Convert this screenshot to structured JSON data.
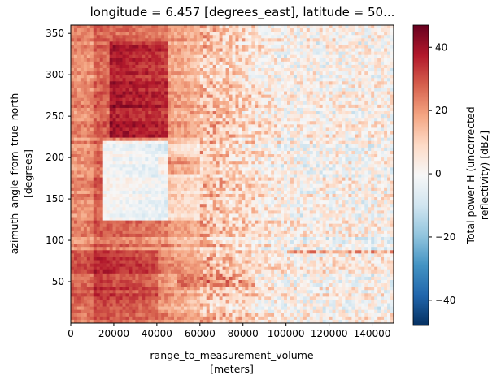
{
  "chart_data": {
    "type": "heatmap",
    "title": "longitude = 6.457 [degrees_east], latitude = 50...",
    "xlabel_line1": "range_to_measurement_volume",
    "xlabel_line2": "[meters]",
    "ylabel_line1": "azimuth_angle_from_true_north",
    "ylabel_line2": "[degrees]",
    "xlim": [
      0,
      150000
    ],
    "ylim": [
      0,
      360
    ],
    "x_ticks": [
      0,
      20000,
      40000,
      60000,
      80000,
      100000,
      120000,
      140000
    ],
    "x_tick_labels": [
      "0",
      "20000",
      "40000",
      "60000",
      "80000",
      "100000",
      "120000",
      "140000"
    ],
    "y_ticks": [
      50,
      100,
      150,
      200,
      250,
      300,
      350
    ],
    "y_tick_labels": [
      "50",
      "100",
      "150",
      "200",
      "250",
      "300",
      "350"
    ],
    "colorbar": {
      "label_line1": "Total power H (uncorrected",
      "label_line2": "reflectivity) [dBZ]",
      "range": [
        -48,
        47
      ],
      "ticks": [
        -40,
        -20,
        0,
        20,
        40
      ],
      "tick_labels": [
        "−40",
        "−20",
        "0",
        "20",
        "40"
      ],
      "colormap": "RdBu_r"
    },
    "grid": false
  }
}
